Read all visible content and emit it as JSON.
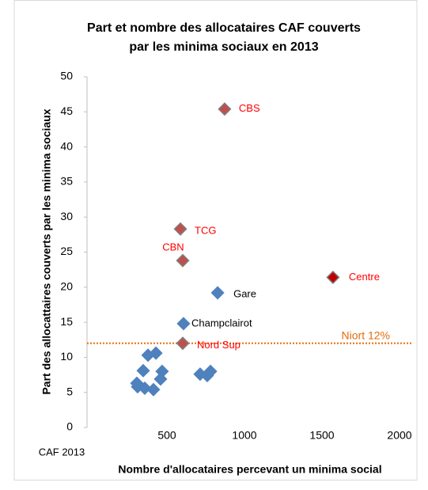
{
  "chart_data": {
    "type": "scatter",
    "title": [
      "Part et nombre des allocataires CAF couverts",
      "par les minima sociaux  en 2013"
    ],
    "x_label": "Nombre d'allocataires  percevant un minima social",
    "y_label": "Part des allocattaires couverts par les minima sociaux",
    "source": "CAF 2013",
    "x": [
      872,
      587,
      602,
      1571,
      827,
      607,
      602,
      378,
      429,
      347,
      469,
      459,
      306,
      311,
      357,
      413,
      714,
      760,
      781
    ],
    "values": [
      45.4,
      28.3,
      23.8,
      21.4,
      19.2,
      14.8,
      12.0,
      10.3,
      10.6,
      8.1,
      8.0,
      6.9,
      6.3,
      5.8,
      5.6,
      5.4,
      7.6,
      7.4,
      8.0
    ],
    "point_labels": [
      "CBS",
      "TCG",
      "CBN",
      "Centre",
      "Gare",
      "Champclairot",
      "Nord Sup",
      null,
      null,
      null,
      null,
      null,
      null,
      null,
      null,
      null,
      null,
      null,
      null
    ],
    "colors": [
      "#c0504d",
      "#c0504d",
      "#c0504d",
      "#c00000",
      "#4f81bd",
      "#4f81bd",
      "#c0504d",
      "#4f81bd",
      "#4f81bd",
      "#4f81bd",
      "#4f81bd",
      "#4f81bd",
      "#4f81bd",
      "#4f81bd",
      "#4f81bd",
      "#4f81bd",
      "#4f81bd",
      "#4f81bd",
      "#4f81bd"
    ],
    "label_colors": [
      "#ff0000",
      "#ff0000",
      "#ff0000",
      "#ff0000",
      "#000000",
      "#000000",
      "#ff0000",
      null,
      null,
      null,
      null,
      null,
      null,
      null,
      null,
      null,
      null,
      null,
      null
    ],
    "reference_line": {
      "value": 12,
      "label": "Niort   12%",
      "color": "#e46c0a"
    },
    "xlim": [
      0,
      2000
    ],
    "xticks": [
      500,
      1000,
      1500,
      2000
    ],
    "ylim": [
      0,
      50
    ],
    "yticks": [
      0,
      5,
      10,
      15,
      20,
      25,
      30,
      35,
      40,
      45,
      50
    ],
    "grid": false
  }
}
